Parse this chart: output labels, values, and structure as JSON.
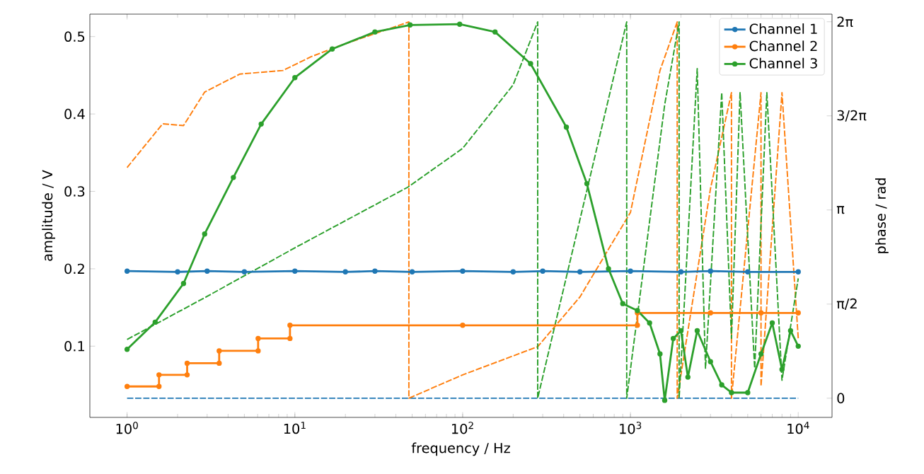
{
  "chart_data": {
    "type": "line",
    "xlabel": "frequency / Hz",
    "ylabel": "amplitude / V",
    "y2label": "phase / rad",
    "log": "x",
    "xlim": [
      0.6,
      15900
    ],
    "ylim": [
      0.008,
      0.529
    ],
    "y2lim": [
      -0.32,
      6.41
    ],
    "xticks": [
      {
        "value": 1,
        "label": "10$^{0}$"
      },
      {
        "value": 10,
        "label": "10$^{1}$"
      },
      {
        "value": 100,
        "label": "10$^{2}$"
      },
      {
        "value": 1000,
        "label": "10$^{3}$"
      },
      {
        "value": 10000,
        "label": "10$^{4}$"
      }
    ],
    "yticks": [
      0.1,
      0.2,
      0.3,
      0.4,
      0.5
    ],
    "y2ticks": [
      {
        "value": 0,
        "label": "0"
      },
      {
        "value": 1.5708,
        "label": "π/2"
      },
      {
        "value": 3.1416,
        "label": "π"
      },
      {
        "value": 4.7124,
        "label": "3/2π"
      },
      {
        "value": 6.2832,
        "label": "2π"
      }
    ],
    "legend": "top right",
    "grid": false,
    "series": [
      {
        "name": "Channel 1",
        "color": "#1f77b4",
        "marker": "circle",
        "x": [
          1,
          2,
          3,
          5,
          10,
          20,
          30,
          50,
          100,
          200,
          300,
          500,
          1000,
          2000,
          3000,
          5000,
          10000
        ],
        "values": [
          0.197,
          0.196,
          0.197,
          0.196,
          0.197,
          0.196,
          0.197,
          0.196,
          0.197,
          0.196,
          0.197,
          0.196,
          0.197,
          0.196,
          0.197,
          0.196,
          0.196
        ]
      },
      {
        "name": "Channel 2",
        "color": "#ff7f0e",
        "marker": "circle",
        "x": [
          1,
          1.55,
          1.55,
          2.28,
          2.28,
          3.54,
          3.54,
          6.04,
          6.04,
          9.35,
          9.35,
          100,
          1100,
          1100,
          3000,
          6000,
          10000
        ],
        "values": [
          0.048,
          0.048,
          0.063,
          0.063,
          0.078,
          0.078,
          0.094,
          0.094,
          0.11,
          0.11,
          0.127,
          0.127,
          0.127,
          0.143,
          0.143,
          0.143,
          0.143
        ]
      },
      {
        "name": "Channel 3",
        "color": "#2ca02c",
        "marker": "circle",
        "x": [
          1,
          1.47,
          2.17,
          2.9,
          4.3,
          6.3,
          10,
          16.7,
          30,
          48.6,
          96,
          156,
          254,
          415,
          550,
          740,
          900,
          1100,
          1300,
          1500,
          1600,
          1800,
          2000,
          2200,
          2500,
          3000,
          3500,
          4000,
          5000,
          6000,
          7000,
          8000,
          9000,
          10000
        ],
        "values": [
          0.096,
          0.131,
          0.181,
          0.245,
          0.318,
          0.387,
          0.447,
          0.484,
          0.506,
          0.515,
          0.516,
          0.506,
          0.465,
          0.383,
          0.31,
          0.2,
          0.155,
          0.146,
          0.13,
          0.09,
          0.03,
          0.11,
          0.12,
          0.06,
          0.12,
          0.08,
          0.05,
          0.04,
          0.04,
          0.09,
          0.13,
          0.07,
          0.12,
          0.1
        ]
      },
      {
        "axis": "y2",
        "color": "#1f77b4",
        "marker": "none",
        "line_style": "dashed",
        "x": [
          1,
          10000
        ],
        "values": [
          0,
          0
        ]
      },
      {
        "axis": "y2",
        "color": "#ff7f0e",
        "marker": "none",
        "line_style": "dashed",
        "x": [
          1,
          1.63,
          2.17,
          2.9,
          4.7,
          8.5,
          12.5,
          18.4,
          47.8,
          47.8,
          100,
          280,
          500,
          1000,
          1500,
          1900,
          1900,
          3000,
          4000,
          4000,
          6000,
          6000,
          8000,
          10000
        ],
        "values": [
          3.85,
          4.58,
          4.55,
          5.11,
          5.41,
          5.47,
          5.7,
          5.88,
          6.28,
          0,
          0.39,
          0.86,
          1.69,
          3.1,
          5.47,
          6.28,
          0,
          3.5,
          5.1,
          0,
          5.1,
          0.2,
          5.1,
          1.0
        ]
      },
      {
        "axis": "y2",
        "color": "#2ca02c",
        "marker": "none",
        "line_style": "dashed",
        "x": [
          1,
          3,
          10,
          47,
          100,
          200,
          280,
          280,
          950,
          950,
          1600,
          1950,
          1950,
          2500,
          2800,
          3500,
          4000,
          4500,
          5500,
          6500,
          8000,
          10000
        ],
        "values": [
          0.98,
          1.7,
          2.51,
          3.52,
          4.17,
          5.23,
          6.28,
          0,
          6.28,
          0,
          4.9,
          6.28,
          0,
          5.5,
          0.5,
          5.1,
          1.0,
          5.1,
          0.5,
          5.1,
          0.3,
          2.0
        ]
      }
    ]
  }
}
